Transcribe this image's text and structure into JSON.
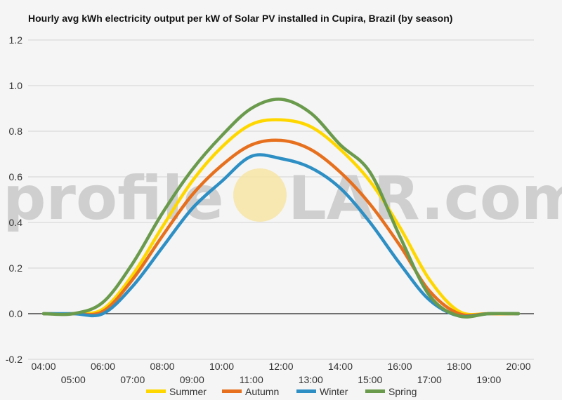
{
  "chart_data": {
    "type": "line",
    "title": "Hourly avg kWh electricity output per kW of Solar PV installed in Cupira, Brazil (by season)",
    "xlabel": "",
    "ylabel": "",
    "ylim": [
      -0.2,
      1.2
    ],
    "yticks": [
      -0.2,
      0.0,
      0.2,
      0.4,
      0.6,
      0.8,
      1.0,
      1.2
    ],
    "ytick_labels": [
      "-0.2",
      "0.0",
      "0.2",
      "0.4",
      "0.6",
      "0.8",
      "1.0",
      "1.2"
    ],
    "categories": [
      "04:00",
      "05:00",
      "06:00",
      "07:00",
      "08:00",
      "09:00",
      "10:00",
      "11:00",
      "12:00",
      "13:00",
      "14:00",
      "15:00",
      "16:00",
      "17:00",
      "18:00",
      "19:00",
      "20:00"
    ],
    "grid": true,
    "legend_position": "bottom",
    "series": [
      {
        "name": "Summer",
        "color": "#ffd700",
        "values": [
          0,
          0,
          0.02,
          0.17,
          0.38,
          0.58,
          0.73,
          0.83,
          0.85,
          0.82,
          0.72,
          0.58,
          0.38,
          0.15,
          0.01,
          0,
          0
        ]
      },
      {
        "name": "Autumn",
        "color": "#e6701e",
        "values": [
          0,
          0,
          0.01,
          0.15,
          0.34,
          0.52,
          0.65,
          0.74,
          0.76,
          0.72,
          0.62,
          0.48,
          0.3,
          0.1,
          0,
          0,
          0
        ]
      },
      {
        "name": "Winter",
        "color": "#2e8fc4",
        "values": [
          0,
          0,
          0,
          0.12,
          0.29,
          0.46,
          0.58,
          0.69,
          0.68,
          0.64,
          0.55,
          0.4,
          0.22,
          0.06,
          -0.01,
          0,
          0
        ]
      },
      {
        "name": "Spring",
        "color": "#6a9a4c",
        "values": [
          0,
          0,
          0.05,
          0.22,
          0.44,
          0.63,
          0.78,
          0.9,
          0.94,
          0.88,
          0.74,
          0.62,
          0.34,
          0.08,
          -0.01,
          0,
          0
        ]
      }
    ]
  },
  "watermark": {
    "left": "profile",
    "sun": "S",
    "right": "LAR.com"
  }
}
